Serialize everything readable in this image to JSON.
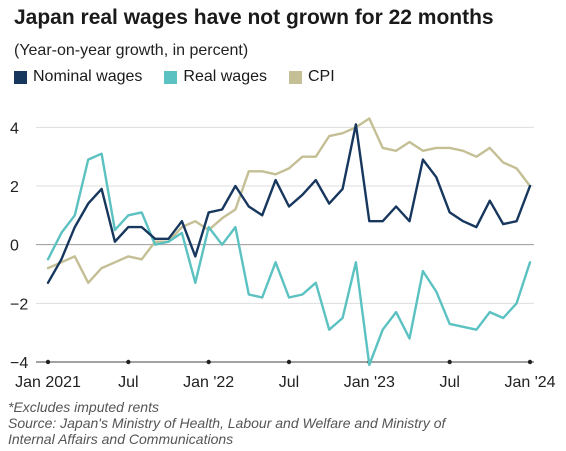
{
  "title": "Japan real wages have not grown for 22 months",
  "subtitle": "(Year-on-year growth, in percent)",
  "footnote": "*Excludes imputed rents",
  "source_line1": "Source: Japan's Ministry of Health, Labour and Welfare and Ministry of",
  "source_line2": "Internal Affairs and Communications",
  "chart_data": {
    "type": "line",
    "x": [
      "2021-01",
      "2021-02",
      "2021-03",
      "2021-04",
      "2021-05",
      "2021-06",
      "2021-07",
      "2021-08",
      "2021-09",
      "2021-10",
      "2021-11",
      "2021-12",
      "2022-01",
      "2022-02",
      "2022-03",
      "2022-04",
      "2022-05",
      "2022-06",
      "2022-07",
      "2022-08",
      "2022-09",
      "2022-10",
      "2022-11",
      "2022-12",
      "2023-01",
      "2023-02",
      "2023-03",
      "2023-04",
      "2023-05",
      "2023-06",
      "2023-07",
      "2023-08",
      "2023-09",
      "2023-10",
      "2023-11",
      "2023-12",
      "2024-01"
    ],
    "x_tick_labels": [
      "Jan 2021",
      "Jul",
      "Jan '22",
      "Jul",
      "Jan '23",
      "Jul",
      "Jan '24"
    ],
    "x_tick_index": [
      0,
      6,
      12,
      18,
      24,
      30,
      36
    ],
    "y_ticks": [
      4,
      2,
      0,
      -2,
      -4
    ],
    "ylim": [
      -4,
      5
    ],
    "grid": "horizontal",
    "legend_position": "top-left",
    "series": [
      {
        "name": "Nominal wages",
        "color": "#17375e",
        "values": [
          -1.3,
          -0.5,
          0.6,
          1.4,
          1.9,
          0.1,
          0.6,
          0.6,
          0.2,
          0.2,
          0.8,
          -0.4,
          1.1,
          1.2,
          2.0,
          1.3,
          1.0,
          2.2,
          1.3,
          1.7,
          2.2,
          1.4,
          1.9,
          4.1,
          0.8,
          0.8,
          1.3,
          0.8,
          2.9,
          2.3,
          1.1,
          0.8,
          0.6,
          1.5,
          0.7,
          0.8,
          2.0
        ]
      },
      {
        "name": "Real wages",
        "color": "#5bc1c1",
        "values": [
          -0.5,
          0.4,
          1.0,
          2.9,
          3.1,
          0.5,
          1.0,
          1.1,
          0.0,
          0.1,
          0.4,
          -1.3,
          0.6,
          0.0,
          0.6,
          -1.7,
          -1.8,
          -0.6,
          -1.8,
          -1.7,
          -1.3,
          -2.9,
          -2.5,
          -0.6,
          -4.1,
          -2.9,
          -2.3,
          -3.2,
          -0.9,
          -1.6,
          -2.7,
          -2.8,
          -2.9,
          -2.3,
          -2.5,
          -2.0,
          -0.6
        ]
      },
      {
        "name": "CPI",
        "color": "#c5bf96",
        "values": [
          -0.8,
          -0.6,
          -0.4,
          -1.3,
          -0.8,
          -0.6,
          -0.4,
          -0.5,
          0.1,
          0.1,
          0.6,
          0.8,
          0.5,
          0.9,
          1.2,
          2.5,
          2.5,
          2.4,
          2.6,
          3.0,
          3.0,
          3.7,
          3.8,
          4.0,
          4.3,
          3.3,
          3.2,
          3.5,
          3.2,
          3.3,
          3.3,
          3.2,
          3.0,
          3.3,
          2.8,
          2.6,
          2.0
        ]
      }
    ]
  }
}
